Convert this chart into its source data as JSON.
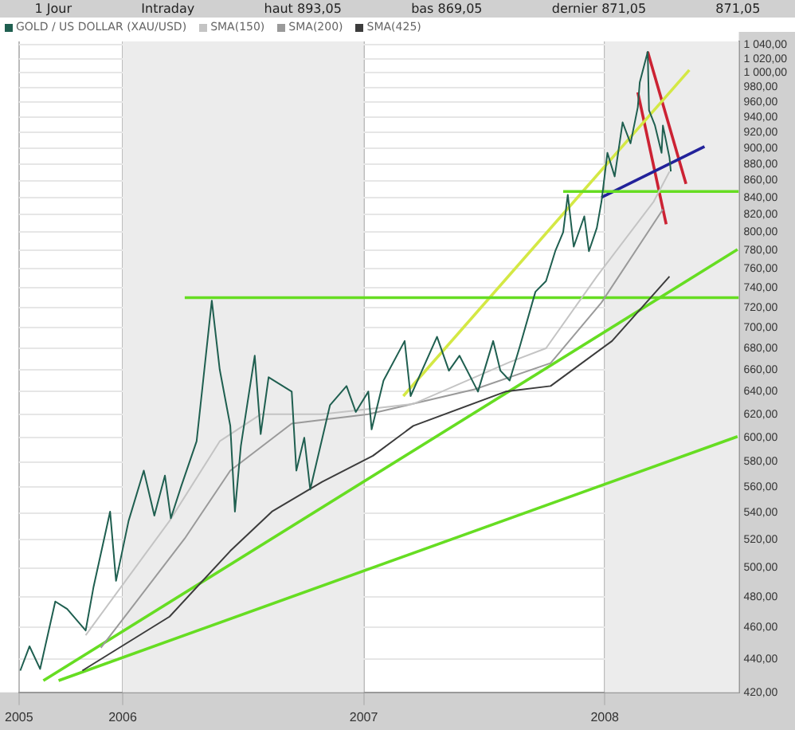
{
  "chart_data": {
    "type": "line",
    "log": true,
    "grid": true,
    "legend": "top left",
    "marker": "none",
    "line_style": "solid",
    "annotations": [
      "1 Jour",
      "Intraday",
      "haut 893,05",
      "bas 869,05",
      "dernier 871,05",
      "871,05"
    ],
    "xlim": [
      "2005-07-28",
      "2008-07-22"
    ],
    "xticks": [
      {
        "value": "2005-07-28",
        "label": "2005"
      },
      "2006",
      "2007",
      "2008"
    ],
    "ylim": [
      420,
      1045
    ],
    "yticks": [
      {
        "value": 420,
        "label": "420,00"
      },
      {
        "value": 440,
        "label": "440,00"
      },
      {
        "value": 460,
        "label": "460,00"
      },
      {
        "value": 480,
        "label": "480,00"
      },
      {
        "value": 500,
        "label": "500,00"
      },
      {
        "value": 520,
        "label": "520,00"
      },
      {
        "value": 540,
        "label": "540,00"
      },
      {
        "value": 560,
        "label": "560,00"
      },
      {
        "value": 580,
        "label": "580,00"
      },
      {
        "value": 600,
        "label": "600,00"
      },
      {
        "value": 620,
        "label": "620,00"
      },
      {
        "value": 640,
        "label": "640,00"
      },
      {
        "value": 660,
        "label": "660,00"
      },
      {
        "value": 680,
        "label": "680,00"
      },
      {
        "value": 700,
        "label": "700,00"
      },
      {
        "value": 720,
        "label": "720,00"
      },
      {
        "value": 740,
        "label": "740,00"
      },
      {
        "value": 760,
        "label": "760,00"
      },
      {
        "value": 780,
        "label": "780,00"
      },
      {
        "value": 800,
        "label": "800,00"
      },
      {
        "value": 820,
        "label": "820,00"
      },
      {
        "value": 840,
        "label": "840,00"
      },
      {
        "value": 860,
        "label": "860,00"
      },
      {
        "value": 880,
        "label": "880,00"
      },
      {
        "value": 900,
        "label": "900,00"
      },
      {
        "value": 920,
        "label": "920,00"
      },
      {
        "value": 940,
        "label": "940,00"
      },
      {
        "value": 960,
        "label": "960,00"
      },
      {
        "value": 980,
        "label": "980,00"
      },
      {
        "value": 1000,
        "label": "1 000,00"
      },
      {
        "value": 1020,
        "label": "1 020,00"
      },
      {
        "value": 1040,
        "label": "1 040,00"
      }
    ],
    "bands": [
      {
        "axis": "x",
        "from": "2006",
        "to": "2007",
        "color": "#ececec"
      },
      {
        "axis": "x",
        "from": "2008",
        "to": "2008-07-22",
        "color": "#ececec"
      }
    ],
    "series": [
      {
        "name": "GOLD / US DOLLAR (XAU/USD)",
        "color": "#1f5f50",
        "x": [
          "2005-07-30",
          "2005-08-13",
          "2005-08-29",
          "2005-09-21",
          "2005-10-09",
          "2005-11-06",
          "2005-11-18",
          "2005-12-13",
          "2005-12-22",
          "2006-01-10",
          "2006-02-02",
          "2006-02-18",
          "2006-03-06",
          "2006-03-15",
          "2006-03-31",
          "2006-04-23",
          "2006-05-16",
          "2006-05-28",
          "2006-06-13",
          "2006-06-20",
          "2006-06-29",
          "2006-07-20",
          "2006-07-29",
          "2006-08-10",
          "2006-09-14",
          "2006-09-21",
          "2006-10-03",
          "2006-10-12",
          "2006-10-30",
          "2006-11-11",
          "2006-12-06",
          "2006-12-20",
          "2007-01-08",
          "2007-01-13",
          "2007-01-31",
          "2007-03-04",
          "2007-03-13",
          "2007-04-22",
          "2007-05-10",
          "2007-05-26",
          "2007-06-23",
          "2007-07-16",
          "2007-07-27",
          "2007-08-10",
          "2007-08-26",
          "2007-09-18",
          "2007-10-04",
          "2007-10-18",
          "2007-10-30",
          "2007-11-06",
          "2007-11-15",
          "2007-12-01",
          "2007-12-08",
          "2007-12-20",
          "2007-12-27",
          "2008-01-05",
          "2008-01-16",
          "2008-01-28",
          "2008-02-09",
          "2008-02-20",
          "2008-02-23",
          "2008-03-06",
          "2008-03-08",
          "2008-03-17",
          "2008-03-27",
          "2008-03-29",
          "2008-04-08",
          "2008-04-10"
        ],
        "values": [
          433,
          448,
          434,
          477,
          472,
          458,
          487,
          541,
          491,
          534,
          573,
          538,
          569,
          536,
          561,
          597,
          727,
          660,
          610,
          541,
          593,
          673,
          603,
          653,
          640,
          573,
          600,
          558,
          599,
          628,
          645,
          622,
          640,
          607,
          650,
          687,
          636,
          691,
          659,
          673,
          640,
          687,
          659,
          650,
          683,
          736,
          747,
          779,
          800,
          843,
          784,
          818,
          779,
          805,
          835,
          894,
          865,
          933,
          906,
          953,
          987,
          1030,
          949,
          929,
          894,
          929,
          888,
          871
        ]
      },
      {
        "name": "SMA(150)",
        "color": "#c4c4c4",
        "x": [
          "2005-11-06",
          "2006-03-13",
          "2006-05-28",
          "2006-07-29",
          "2006-10-30",
          "2007-03-17",
          "2007-08-10",
          "2007-10-04",
          "2007-12-20",
          "2008-03-15",
          "2008-04-08"
        ],
        "values": [
          455,
          534,
          597,
          620,
          620,
          629,
          667,
          680,
          752,
          835,
          871
        ]
      },
      {
        "name": "SMA(200)",
        "color": "#9a9a9a",
        "x": [
          "2005-11-29",
          "2006-04-05",
          "2006-06-13",
          "2006-09-14",
          "2007-01-08",
          "2007-06-18",
          "2007-10-11",
          "2007-12-27",
          "2008-03-29"
        ],
        "values": [
          447,
          521,
          573,
          612,
          620,
          642,
          666,
          725,
          826
        ]
      },
      {
        "name": "SMA(425)",
        "color": "#3c3c3c",
        "x": [
          "2005-11-01",
          "2006-03-13",
          "2006-06-13",
          "2006-08-15",
          "2006-10-30",
          "2007-01-15",
          "2007-03-17",
          "2007-08-04",
          "2007-10-11",
          "2008-01-12",
          "2008-04-08"
        ],
        "values": [
          433,
          467,
          512,
          541,
          564,
          585,
          610,
          640,
          645,
          687,
          752
        ]
      },
      {
        "color": "#66dd22",
        "x": [
          "2006-04-05",
          "2008-07-22"
        ],
        "values": [
          730,
          730
        ]
      },
      {
        "color": "#66dd22",
        "x": [
          "2007-10-30",
          "2008-07-22"
        ],
        "values": [
          847,
          847
        ]
      },
      {
        "color": "#66dd22",
        "x": [
          "2005-09-03",
          "2008-07-20"
        ],
        "values": [
          427,
          781
        ]
      },
      {
        "color": "#66dd22",
        "x": [
          "2005-09-26",
          "2008-07-20"
        ],
        "values": [
          427,
          601
        ]
      },
      {
        "color": "#d4e844",
        "x": [
          "2007-03-02",
          "2008-05-08"
        ],
        "values": [
          636,
          1004
        ]
      },
      {
        "color": "#22229a",
        "x": [
          "2007-12-27",
          "2008-05-31"
        ],
        "values": [
          840,
          902
        ]
      },
      {
        "color": "#cc2233",
        "x": [
          "2008-03-06",
          "2008-05-03"
        ],
        "values": [
          1030,
          856
        ]
      },
      {
        "color": "#cc2233",
        "x": [
          "2008-02-20",
          "2008-04-03"
        ],
        "values": [
          973,
          809
        ]
      }
    ]
  }
}
